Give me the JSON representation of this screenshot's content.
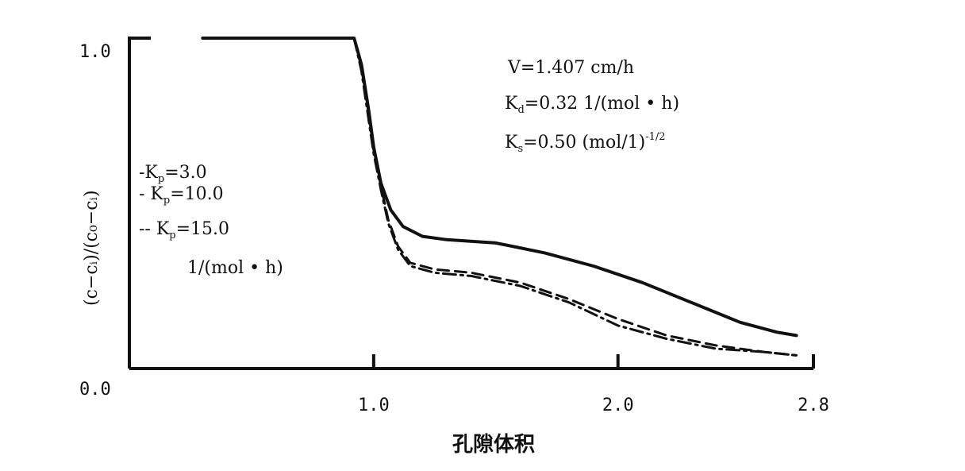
{
  "chart_data": {
    "type": "line",
    "title": "",
    "xlabel": "孔隙体积",
    "ylabel": "(c−cᵢ)/(c₀−cᵢ)",
    "xlim": [
      0.0,
      2.8
    ],
    "ylim": [
      0.0,
      1.0
    ],
    "x_ticks": [
      {
        "value": 1.0,
        "label": "1.0"
      },
      {
        "value": 2.0,
        "label": "2.0"
      },
      {
        "value": 2.8,
        "label": "2.8"
      }
    ],
    "y_ticks": [
      {
        "value": 0.0,
        "label": "0.0"
      },
      {
        "value": 1.0,
        "label": "1.0"
      }
    ],
    "grid": false,
    "legend_position": "left",
    "legend": [
      {
        "label": "-K",
        "sub": "p",
        "value": "=3.0"
      },
      {
        "label": "- K",
        "sub": "p",
        "value": "=10.0"
      },
      {
        "label": "-- K",
        "sub": "p",
        "value": "=15.0"
      }
    ],
    "legend_unit": "1/(mol • h)",
    "annotations": [
      {
        "main": "V=1.407 cm/h"
      },
      {
        "main": "K",
        "sub": "d",
        "rest": "=0.32 1/(mol • h)"
      },
      {
        "main": "K",
        "sub": "s",
        "rest": "=0.50 (mol/1)",
        "sup": "-1/2"
      }
    ],
    "series": [
      {
        "style": "solid",
        "points": [
          [
            0.3,
            1.0
          ],
          [
            0.92,
            1.0
          ],
          [
            0.95,
            0.92
          ],
          [
            0.98,
            0.78
          ],
          [
            1.0,
            0.67
          ],
          [
            1.03,
            0.56
          ],
          [
            1.07,
            0.48
          ],
          [
            1.12,
            0.43
          ],
          [
            1.2,
            0.4
          ],
          [
            1.3,
            0.39
          ],
          [
            1.5,
            0.38
          ],
          [
            1.7,
            0.35
          ],
          [
            1.9,
            0.31
          ],
          [
            2.1,
            0.26
          ],
          [
            2.3,
            0.2
          ],
          [
            2.5,
            0.14
          ],
          [
            2.65,
            0.11
          ],
          [
            2.73,
            0.1
          ]
        ]
      },
      {
        "style": "dashed",
        "points": [
          [
            0.92,
            1.0
          ],
          [
            0.95,
            0.91
          ],
          [
            0.98,
            0.77
          ],
          [
            1.0,
            0.66
          ],
          [
            1.03,
            0.55
          ],
          [
            1.06,
            0.45
          ],
          [
            1.1,
            0.37
          ],
          [
            1.15,
            0.32
          ],
          [
            1.25,
            0.3
          ],
          [
            1.4,
            0.29
          ],
          [
            1.6,
            0.26
          ],
          [
            1.8,
            0.21
          ],
          [
            2.0,
            0.15
          ],
          [
            2.2,
            0.1
          ],
          [
            2.4,
            0.07
          ],
          [
            2.6,
            0.05
          ],
          [
            2.73,
            0.04
          ]
        ]
      },
      {
        "style": "dashdot",
        "points": [
          [
            0.92,
            1.0
          ],
          [
            0.95,
            0.9
          ],
          [
            0.98,
            0.75
          ],
          [
            1.0,
            0.65
          ],
          [
            1.03,
            0.54
          ],
          [
            1.06,
            0.44
          ],
          [
            1.1,
            0.36
          ],
          [
            1.15,
            0.31
          ],
          [
            1.25,
            0.29
          ],
          [
            1.4,
            0.28
          ],
          [
            1.6,
            0.25
          ],
          [
            1.8,
            0.2
          ],
          [
            2.0,
            0.13
          ],
          [
            2.2,
            0.09
          ],
          [
            2.4,
            0.06
          ],
          [
            2.6,
            0.05
          ],
          [
            2.73,
            0.04
          ]
        ]
      }
    ]
  }
}
